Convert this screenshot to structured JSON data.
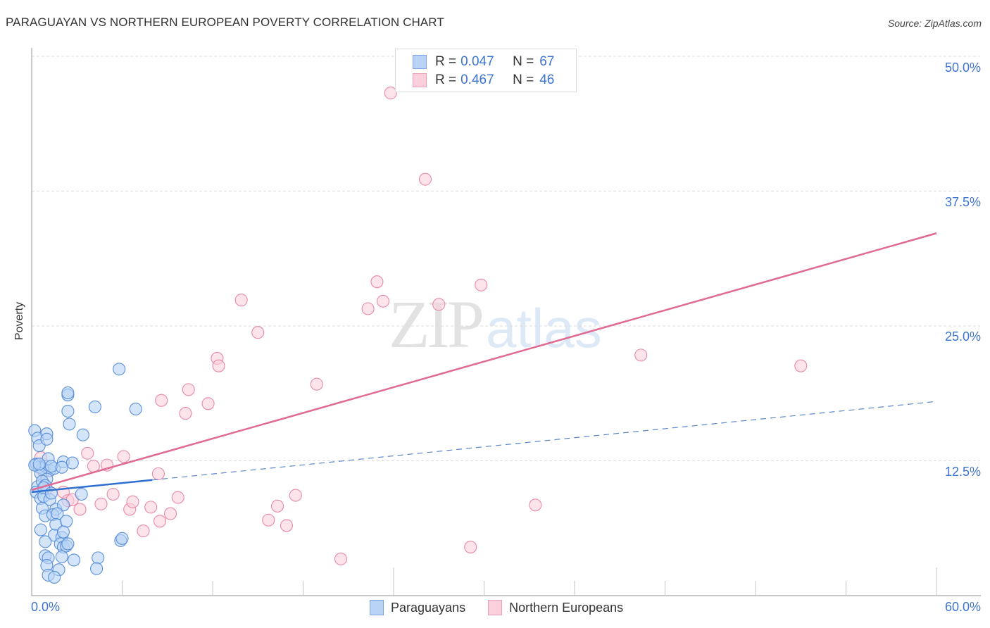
{
  "header": {
    "title": "PARAGUAYAN VS NORTHERN EUROPEAN POVERTY CORRELATION CHART",
    "source": "Source: ZipAtlas.com"
  },
  "axes": {
    "ylabel": "Poverty",
    "y_ticks": [
      "50.0%",
      "37.5%",
      "25.0%",
      "12.5%"
    ],
    "x_min_label": "0.0%",
    "x_max_label": "60.0%"
  },
  "legend": {
    "series1": {
      "r_label": "R =",
      "r_value": "0.047",
      "n_label": "N =",
      "n_value": "67"
    },
    "series2": {
      "r_label": "R =",
      "r_value": "0.467",
      "n_label": "N =",
      "n_value": "46"
    }
  },
  "bottom_legend": {
    "series1_label": "Paraguayans",
    "series2_label": "Northern Europeans"
  },
  "watermark": {
    "zip": "ZIP",
    "atlas": "atlas"
  },
  "colors": {
    "paraguayan_fill": "#b8d3f5",
    "paraguayan_stroke": "#5a8fdc",
    "paraguayan_line": "#2f6fd0",
    "northern_fill": "#fbd0dc",
    "northern_stroke": "#e88aa6",
    "northern_line": "#e06a92",
    "tick_label": "#3d74d1"
  },
  "chart_data": {
    "type": "scatter",
    "title": "PARAGUAYAN VS NORTHERN EUROPEAN POVERTY CORRELATION CHART",
    "xlabel": "",
    "ylabel": "Poverty",
    "xlim": [
      0,
      60
    ],
    "ylim": [
      0,
      50
    ],
    "x_unit": "%",
    "y_unit": "%",
    "y_ticks": [
      12.5,
      25.0,
      37.5,
      50.0
    ],
    "grid": "horizontal dashed",
    "legend_position": "top-center",
    "series": [
      {
        "name": "Paraguayans",
        "R": 0.047,
        "N": 67,
        "trend": {
          "x": [
            0,
            60
          ],
          "y": [
            9.6,
            18.0
          ],
          "solid_until_x": 8.0
        },
        "points": [
          [
            0.2,
            15.3
          ],
          [
            0.4,
            14.6
          ],
          [
            0.5,
            13.9
          ],
          [
            1.0,
            15.0
          ],
          [
            1.0,
            14.5
          ],
          [
            0.3,
            12.2
          ],
          [
            0.5,
            11.9
          ],
          [
            0.7,
            11.8
          ],
          [
            0.9,
            12.0
          ],
          [
            1.2,
            11.6
          ],
          [
            1.1,
            12.7
          ],
          [
            1.5,
            11.8
          ],
          [
            1.3,
            12.0
          ],
          [
            0.6,
            11.3
          ],
          [
            1.0,
            10.8
          ],
          [
            0.4,
            10.1
          ],
          [
            0.7,
            10.6
          ],
          [
            0.9,
            10.2
          ],
          [
            0.3,
            9.6
          ],
          [
            0.6,
            9.0
          ],
          [
            0.8,
            9.2
          ],
          [
            1.2,
            8.9
          ],
          [
            0.7,
            8.1
          ],
          [
            1.6,
            8.0
          ],
          [
            2.1,
            8.4
          ],
          [
            0.9,
            7.4
          ],
          [
            1.4,
            7.5
          ],
          [
            1.7,
            7.6
          ],
          [
            1.6,
            6.6
          ],
          [
            2.3,
            6.9
          ],
          [
            1.5,
            5.6
          ],
          [
            2.0,
            5.4
          ],
          [
            2.1,
            5.9
          ],
          [
            0.9,
            5.0
          ],
          [
            1.9,
            4.8
          ],
          [
            2.1,
            4.5
          ],
          [
            2.3,
            4.6
          ],
          [
            2.4,
            4.8
          ],
          [
            0.9,
            3.7
          ],
          [
            1.1,
            3.5
          ],
          [
            2.0,
            3.6
          ],
          [
            2.8,
            3.3
          ],
          [
            4.4,
            3.5
          ],
          [
            1.0,
            2.8
          ],
          [
            1.8,
            2.4
          ],
          [
            4.3,
            2.5
          ],
          [
            1.1,
            1.9
          ],
          [
            1.5,
            1.7
          ],
          [
            2.5,
            15.9
          ],
          [
            2.4,
            17.1
          ],
          [
            2.4,
            18.6
          ],
          [
            2.4,
            18.8
          ],
          [
            4.2,
            17.5
          ],
          [
            5.8,
            21.0
          ],
          [
            6.9,
            17.3
          ],
          [
            3.4,
            14.9
          ],
          [
            2.1,
            12.4
          ],
          [
            2.7,
            12.3
          ],
          [
            3.3,
            9.4
          ],
          [
            5.9,
            5.1
          ],
          [
            6.0,
            5.3
          ],
          [
            0.2,
            12.1
          ],
          [
            0.5,
            12.2
          ],
          [
            0.8,
            10.0
          ],
          [
            1.3,
            9.5
          ],
          [
            2.0,
            11.9
          ],
          [
            0.6,
            6.1
          ]
        ]
      },
      {
        "name": "Northern Europeans",
        "R": 0.467,
        "N": 46,
        "trend": {
          "x": [
            0,
            60
          ],
          "y": [
            9.8,
            33.6
          ]
        },
        "points": [
          [
            23.8,
            46.6
          ],
          [
            26.1,
            38.6
          ],
          [
            22.9,
            29.1
          ],
          [
            22.3,
            26.6
          ],
          [
            23.3,
            27.3
          ],
          [
            29.8,
            28.8
          ],
          [
            27.0,
            27.0
          ],
          [
            13.9,
            27.4
          ],
          [
            15.0,
            24.4
          ],
          [
            12.3,
            22.0
          ],
          [
            12.4,
            21.3
          ],
          [
            18.9,
            19.6
          ],
          [
            10.4,
            19.1
          ],
          [
            8.6,
            18.1
          ],
          [
            11.7,
            17.8
          ],
          [
            10.2,
            16.9
          ],
          [
            40.4,
            22.3
          ],
          [
            51.0,
            21.3
          ],
          [
            3.7,
            13.2
          ],
          [
            6.1,
            12.9
          ],
          [
            4.1,
            12.0
          ],
          [
            5.0,
            12.1
          ],
          [
            8.4,
            11.3
          ],
          [
            0.6,
            12.8
          ],
          [
            0.8,
            11.5
          ],
          [
            1.0,
            9.9
          ],
          [
            2.1,
            9.6
          ],
          [
            2.4,
            8.8
          ],
          [
            4.6,
            8.5
          ],
          [
            5.4,
            9.4
          ],
          [
            3.2,
            8.0
          ],
          [
            6.5,
            8.0
          ],
          [
            7.9,
            8.2
          ],
          [
            6.7,
            8.7
          ],
          [
            9.7,
            9.1
          ],
          [
            17.5,
            9.3
          ],
          [
            16.3,
            8.3
          ],
          [
            9.2,
            7.6
          ],
          [
            15.7,
            7.0
          ],
          [
            8.5,
            6.9
          ],
          [
            16.9,
            6.5
          ],
          [
            7.4,
            6.0
          ],
          [
            33.4,
            8.4
          ],
          [
            29.1,
            4.5
          ],
          [
            20.5,
            3.4
          ],
          [
            2.7,
            8.9
          ]
        ]
      }
    ]
  }
}
